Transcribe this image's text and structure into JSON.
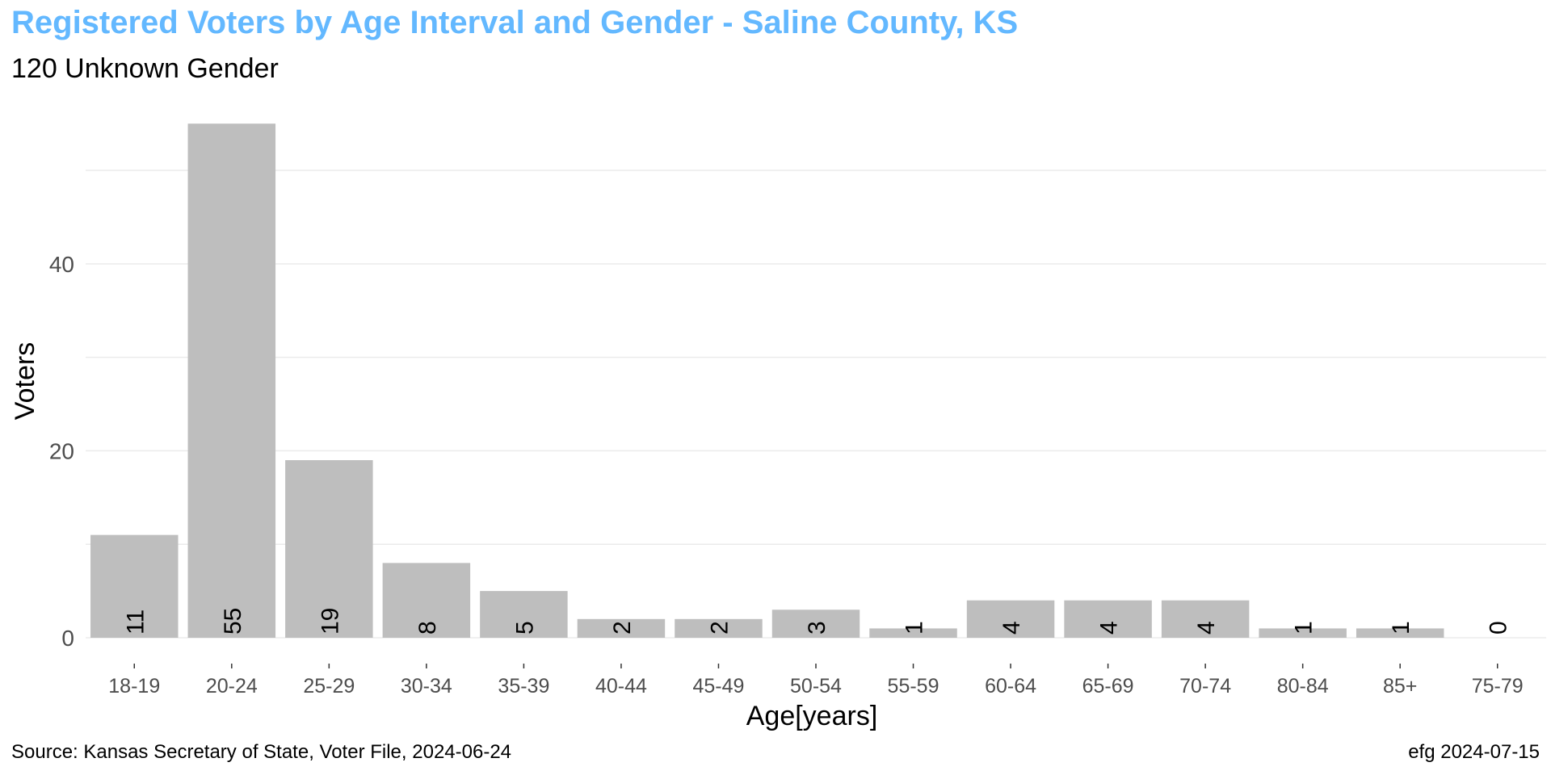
{
  "chart_data": {
    "type": "bar",
    "title": "Registered Voters by Age Interval and Gender - Saline County, KS",
    "subtitle": "120 Unknown Gender",
    "xlabel": "Age[years]",
    "ylabel": "Voters",
    "categories": [
      "18-19",
      "20-24",
      "25-29",
      "30-34",
      "35-39",
      "40-44",
      "45-49",
      "50-54",
      "55-59",
      "60-64",
      "65-69",
      "70-74",
      "80-84",
      "85+",
      "75-79"
    ],
    "values": [
      11,
      55,
      19,
      8,
      5,
      2,
      2,
      3,
      1,
      4,
      4,
      4,
      1,
      1,
      0
    ],
    "data_labels": [
      "11",
      "55",
      "19",
      "8",
      "5",
      "2",
      "2",
      "3",
      "1",
      "4",
      "4",
      "4",
      "1",
      "1",
      "0"
    ],
    "yticks": [
      0,
      20,
      40
    ],
    "ytick_labels": [
      "0",
      "20",
      "40"
    ],
    "ylim": [
      0,
      57
    ],
    "grid": true,
    "bar_color": "#bebebe",
    "title_color": "#63b8ff",
    "grid_color": "#ebebeb"
  },
  "caption": {
    "source": "Source:  Kansas Secretary of State, Voter File, 2024-06-24",
    "credit": "efg 2024-07-15"
  }
}
